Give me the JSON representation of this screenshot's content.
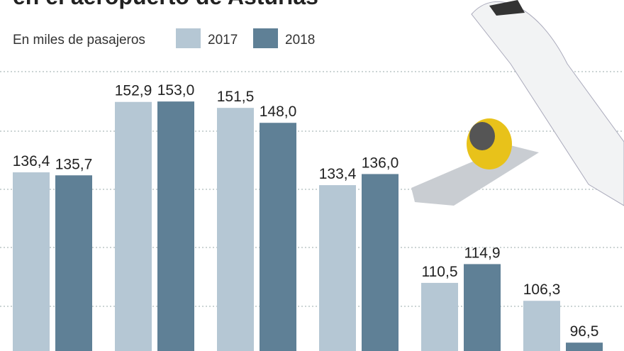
{
  "chart_data": {
    "type": "bar",
    "title": "en el aeropuerto de Asturias",
    "subtitle": "En miles de pasajeros",
    "categories": [
      null,
      null,
      null,
      null,
      null,
      null
    ],
    "series": [
      {
        "name": "2017",
        "color": "#b5c7d4",
        "values": [
          136.4,
          152.9,
          151.5,
          133.4,
          110.5,
          106.3
        ],
        "value_labels": [
          "136,4",
          "152,9",
          "151,5",
          "133,4",
          "110,5",
          "106,3"
        ]
      },
      {
        "name": "2018",
        "color": "#5f8096",
        "values": [
          135.7,
          153.0,
          148.0,
          136.0,
          114.9,
          96.5
        ],
        "value_labels": [
          "135,7",
          "153,0",
          "148,0",
          "136,0",
          "114,9",
          "96,5"
        ]
      }
    ],
    "ylim": [
      0,
      160
    ]
  }
}
